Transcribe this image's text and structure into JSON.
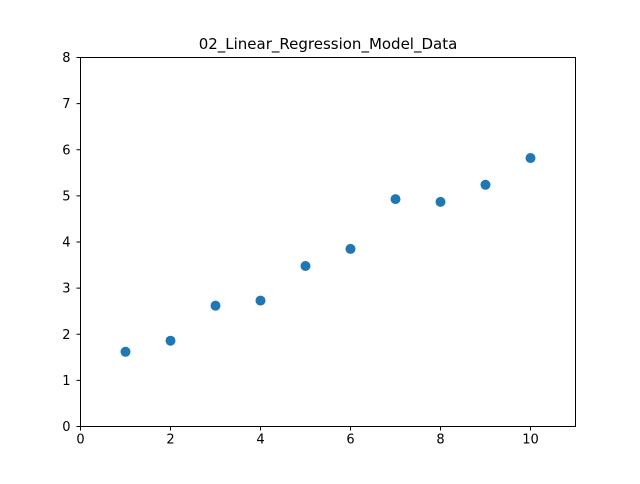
{
  "chart_data": {
    "type": "scatter",
    "title": "02_Linear_Regression_Model_Data",
    "xlabel": "",
    "ylabel": "",
    "xlim": [
      0,
      11
    ],
    "ylim": [
      0,
      8
    ],
    "xticks": [
      0,
      2,
      4,
      6,
      8,
      10
    ],
    "yticks": [
      0,
      1,
      2,
      3,
      4,
      5,
      6,
      7,
      8
    ],
    "grid": false,
    "marker_color": "#1f77b4",
    "x": [
      1,
      2,
      3,
      4,
      5,
      6,
      7,
      8,
      9,
      10
    ],
    "y": [
      1.62,
      1.86,
      2.62,
      2.73,
      3.48,
      3.85,
      4.93,
      4.87,
      5.24,
      5.82
    ]
  }
}
